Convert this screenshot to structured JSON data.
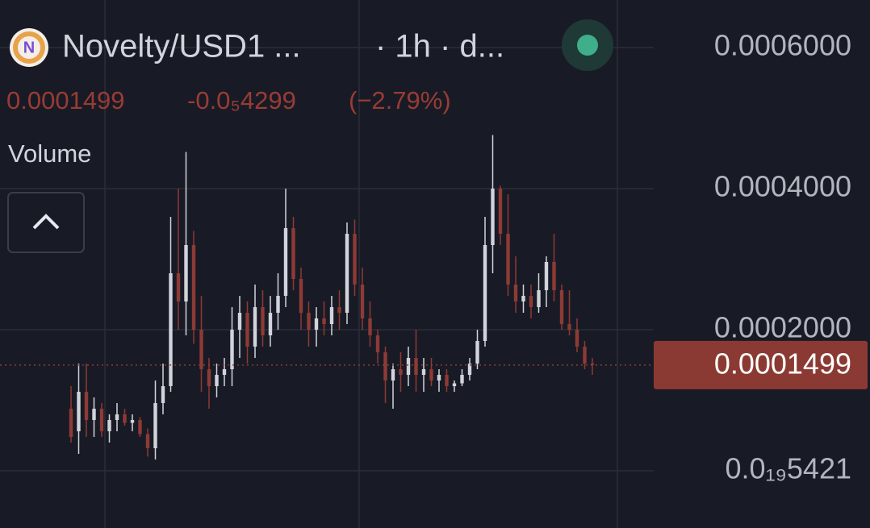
{
  "header": {
    "pair": "Novelty/USD1 ...",
    "interval": "· 1h · d...",
    "price": "0.0001499",
    "change": "-0.0₅4299",
    "change_pct": "(−2.79%)",
    "volume": "Volume"
  },
  "chart_data": {
    "type": "candlestick",
    "up_color": "#d1d4dc",
    "down_color": "#8e3a35",
    "open": [
      8.8e-05,
      5.6e-05,
      0.000112,
      7.2e-05,
      8.8e-05,
      5.6e-05,
      7.2e-05,
      8e-05,
      6.8e-05,
      7.2e-05,
      5.2e-05,
      3.2e-05,
      9.6e-05,
      0.00012,
      0.00028,
      0.00024,
      0.00032,
      0.0002,
      0.000144,
      0.00012,
      0.000136,
      0.000144,
      0.0002,
      0.000224,
      0.000176,
      0.000232,
      0.000192,
      0.000224,
      0.000248,
      0.000344,
      0.000272,
      0.000224,
      0.0002,
      0.000216,
      0.000208,
      0.000232,
      0.000224,
      0.000336,
      0.000264,
      0.000216,
      0.000192,
      0.000168,
      0.000128,
      0.000144,
      0.000136,
      0.00016,
      0.000136,
      0.000144,
      0.000128,
      0.000136,
      0.00012,
      0.000124,
      0.000136,
      0.000152,
      0.000184,
      0.00032,
      0.0004,
      0.000336,
      0.000264,
      0.00024,
      0.000248,
      0.000232,
      0.000256,
      0.000296,
      0.000256,
      0.000208,
      0.0002,
      0.000176,
      0.000152
    ],
    "high": [
      0.00012,
      0.000152,
      0.000152,
      0.000104,
      9.6e-05,
      8e-05,
      9.6e-05,
      8.8e-05,
      8e-05,
      7.6e-05,
      6e-05,
      0.000128,
      0.000152,
      0.00036,
      0.0004,
      0.000452,
      0.00034,
      0.000248,
      0.00016,
      0.000152,
      0.00016,
      0.000232,
      0.000248,
      0.00024,
      0.000264,
      0.000256,
      0.000248,
      0.00028,
      0.0004,
      0.00036,
      0.000288,
      0.00024,
      0.000232,
      0.00024,
      0.000248,
      0.000256,
      0.000352,
      0.000356,
      0.000288,
      0.00024,
      0.0002,
      0.000176,
      0.000152,
      0.000168,
      0.000176,
      0.0002,
      0.00016,
      0.00016,
      0.000144,
      0.000144,
      0.000128,
      0.000144,
      0.00016,
      0.0002,
      0.00036,
      0.000476,
      0.000404,
      0.000392,
      0.000304,
      0.000264,
      0.000264,
      0.00028,
      0.000304,
      0.000336,
      0.000264,
      0.000256,
      0.000216,
      0.000184,
      0.00016
    ],
    "low": [
      4e-05,
      2.4e-05,
      4.8e-05,
      4.8e-05,
      4.8e-05,
      4e-05,
      5.6e-05,
      6.4e-05,
      5.6e-05,
      4.8e-05,
      2e-05,
      1.6e-05,
      8e-05,
      0.000112,
      0.0002,
      0.000192,
      0.00018,
      0.000112,
      8.8e-05,
      0.000104,
      0.00012,
      0.00012,
      0.00016,
      0.000152,
      0.00016,
      0.000176,
      0.000176,
      0.0002,
      0.000232,
      0.000256,
      0.0002,
      0.000176,
      0.000176,
      0.000192,
      0.000192,
      0.0002,
      0.000208,
      0.000248,
      0.0002,
      0.000176,
      0.000152,
      9.6e-05,
      8.8e-05,
      0.000112,
      0.00012,
      0.000112,
      0.000112,
      0.00012,
      0.000112,
      0.000112,
      0.000112,
      0.00012,
      0.000128,
      0.000144,
      0.000176,
      0.00028,
      0.00032,
      0.000248,
      0.000224,
      0.000224,
      0.000216,
      0.000224,
      0.000232,
      0.00024,
      0.0002,
      0.000192,
      0.000168,
      0.000144,
      0.000136
    ],
    "close": [
      4.8e-05,
      0.000112,
      7.2e-05,
      8.8e-05,
      5.6e-05,
      7.2e-05,
      8e-05,
      6.8e-05,
      7.2e-05,
      5.2e-05,
      3.2e-05,
      9.6e-05,
      0.00012,
      0.00028,
      0.00024,
      0.00032,
      0.0002,
      0.000144,
      0.00012,
      0.000136,
      0.000144,
      0.0002,
      0.000224,
      0.000176,
      0.000232,
      0.000192,
      0.000224,
      0.000248,
      0.000344,
      0.000272,
      0.000224,
      0.0002,
      0.000216,
      0.000208,
      0.000232,
      0.000224,
      0.000336,
      0.000264,
      0.000216,
      0.000192,
      0.000168,
      0.000128,
      0.000144,
      0.000136,
      0.00016,
      0.000136,
      0.000144,
      0.000128,
      0.000136,
      0.00012,
      0.000124,
      0.000136,
      0.000152,
      0.000184,
      0.00032,
      0.0004,
      0.000336,
      0.000264,
      0.00024,
      0.000248,
      0.000232,
      0.000256,
      0.000296,
      0.000256,
      0.000208,
      0.0002,
      0.000176,
      0.000152,
      0.0001499
    ],
    "last_price": 0.0001499,
    "ylim": [
      -8.11e-05,
      0.0006674
    ],
    "yticks": [
      {
        "value": 0.0006,
        "label": "0.0006000"
      },
      {
        "value": 0.0004,
        "label": "0.0004000"
      },
      {
        "value": 0.0002,
        "label": "0.0002000"
      },
      {
        "value": 5.421e-20,
        "label": "0.0₁₉5421"
      }
    ],
    "grid": true
  }
}
